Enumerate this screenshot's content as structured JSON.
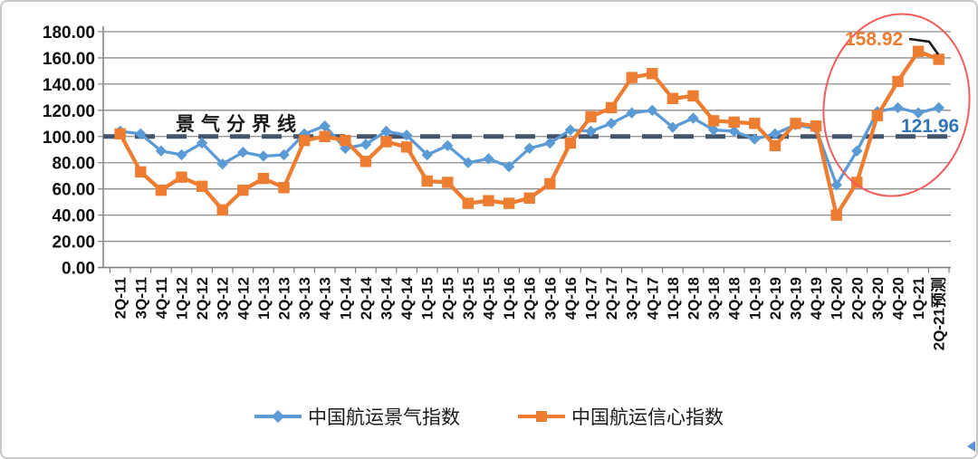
{
  "chart_data": {
    "type": "line",
    "title": "",
    "xlabel": "",
    "ylabel": "",
    "ylim": [
      0,
      180
    ],
    "ytick_step": 20,
    "ytick_labels": [
      "0.00",
      "20.00",
      "40.00",
      "60.00",
      "80.00",
      "100.00",
      "120.00",
      "140.00",
      "160.00",
      "180.00"
    ],
    "grid": true,
    "legend_position": "bottom",
    "categories": [
      "2Q-11",
      "3Q-11",
      "4Q-11",
      "1Q-12",
      "2Q-12",
      "3Q-12",
      "4Q-12",
      "1Q-13",
      "2Q-13",
      "3Q-13",
      "4Q-13",
      "1Q-14",
      "2Q-14",
      "3Q-14",
      "4Q-14",
      "1Q-15",
      "2Q-15",
      "3Q-15",
      "4Q-15",
      "1Q-16",
      "2Q-16",
      "3Q-16",
      "4Q-16",
      "1Q-17",
      "2Q-17",
      "3Q-17",
      "4Q-17",
      "1Q-18",
      "2Q-18",
      "3Q-18",
      "4Q-18",
      "1Q-19",
      "2Q-19",
      "3Q-19",
      "4Q-19",
      "1Q-20",
      "2Q-20",
      "3Q-20",
      "4Q-20",
      "1Q-21",
      "2Q-21预测"
    ],
    "series": [
      {
        "name": "中国航运景气指数",
        "color": "#5b9bd5",
        "marker": "diamond",
        "values": [
          104,
          102,
          89,
          86,
          95,
          79,
          88,
          85,
          86,
          102,
          108,
          91,
          94,
          104,
          101,
          86,
          93,
          80,
          83,
          77,
          91,
          95,
          105,
          104,
          110,
          118,
          120,
          107,
          114,
          105,
          104,
          98,
          102,
          109,
          106,
          63,
          89,
          119,
          122,
          118,
          121.96
        ]
      },
      {
        "name": "中国航运信心指数",
        "color": "#ed7d31",
        "marker": "square",
        "values": [
          102,
          73,
          59,
          69,
          62,
          44,
          59,
          68,
          61,
          97,
          100,
          97,
          81,
          96,
          92,
          66,
          65,
          49,
          51,
          49,
          53,
          64,
          95,
          115,
          122,
          145,
          148,
          129,
          131,
          112,
          111,
          110,
          93,
          110,
          108,
          40,
          65,
          116,
          142,
          165,
          158.92
        ]
      }
    ],
    "reference_line": {
      "value": 100,
      "label": "景气分界线",
      "color": "#44546a"
    },
    "annotations": [
      {
        "text": "158.92",
        "series": "中国航运信心指数",
        "category": "2Q-21预测",
        "color": "#ed7d31"
      },
      {
        "text": "121.96",
        "series": "中国航运景气指数",
        "category": "2Q-21预测",
        "color": "#2e75b6"
      }
    ],
    "highlight_ellipse": {
      "from_category": "2Q-20",
      "to_category": "2Q-21预测",
      "color": "#f45b5b"
    }
  },
  "legend": {
    "items": [
      {
        "label": "中国航运景气指数",
        "color": "#5b9bd5",
        "marker": "diamond"
      },
      {
        "label": "中国航运信心指数",
        "color": "#ed7d31",
        "marker": "square"
      }
    ]
  },
  "colors": {
    "gridline": "#8c8c8c",
    "axis": "#7f7f7f",
    "callout": "#1a1a1a",
    "annotation_blue": "#2e75b6",
    "corner_triangle": "#5b8fd4"
  }
}
